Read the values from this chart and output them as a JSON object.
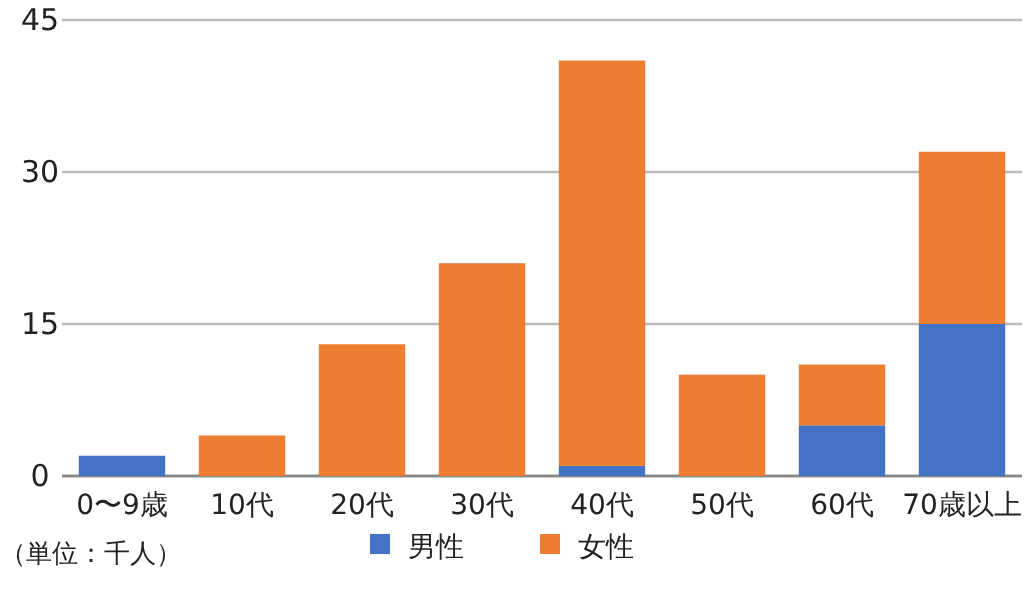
{
  "chart_data": {
    "type": "bar",
    "stacked": true,
    "categories": [
      "0〜9歳",
      "10代",
      "20代",
      "30代",
      "40代",
      "50代",
      "60代",
      "70歳以上"
    ],
    "series": [
      {
        "name": "男性",
        "color": "#4472c4",
        "values": [
          2,
          0,
          0,
          0,
          1,
          0,
          5,
          15
        ]
      },
      {
        "name": "女性",
        "color": "#ed7d31",
        "values": [
          0,
          4,
          13,
          21,
          40,
          10,
          6,
          17
        ]
      }
    ],
    "ylim": [
      0,
      45
    ],
    "yticks": [
      0,
      15,
      30,
      45
    ],
    "grid": "y",
    "legend": "bottom",
    "annotations": [
      "（単位：千人）"
    ]
  }
}
